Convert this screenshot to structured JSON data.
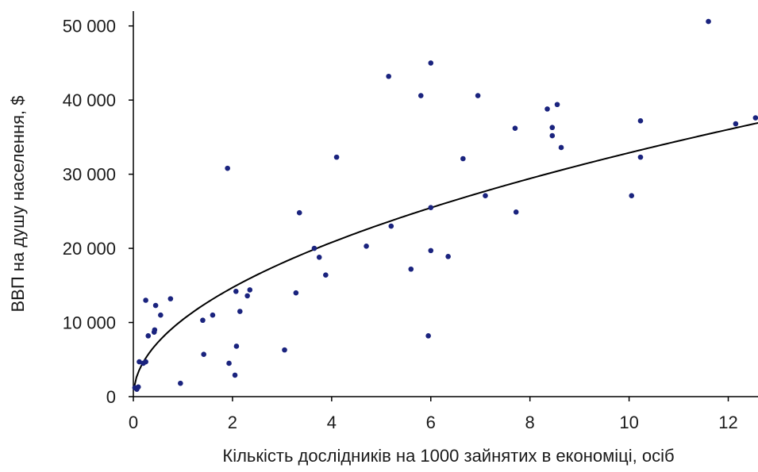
{
  "chart_data": {
    "type": "scatter",
    "xlabel": "Кількість дослідників на 1000 зайнятих в економіці, осіб",
    "ylabel": "ВВП на душу населення, $",
    "xlim": [
      0,
      12.6
    ],
    "ylim": [
      0,
      52000
    ],
    "x_ticks": [
      0,
      2,
      4,
      6,
      8,
      10,
      12
    ],
    "x_tick_labels": [
      "0",
      "2",
      "4",
      "6",
      "8",
      "10",
      "12"
    ],
    "y_ticks": [
      0,
      10000,
      20000,
      30000,
      40000,
      50000
    ],
    "y_tick_labels": [
      "0",
      "10 000",
      "20 000",
      "30 000",
      "40 000",
      "50 000"
    ],
    "grid": false,
    "legend": "none",
    "point_color": "#1a237e",
    "trendline": {
      "type": "power",
      "a": 10400,
      "b": 0.5,
      "color": "#000000"
    },
    "points": [
      {
        "x": 0.03,
        "y": 1200
      },
      {
        "x": 0.07,
        "y": 1000
      },
      {
        "x": 0.1,
        "y": 1300
      },
      {
        "x": 0.12,
        "y": 4700
      },
      {
        "x": 0.2,
        "y": 4500
      },
      {
        "x": 0.25,
        "y": 4700
      },
      {
        "x": 0.25,
        "y": 13000
      },
      {
        "x": 0.3,
        "y": 8200
      },
      {
        "x": 0.42,
        "y": 8700
      },
      {
        "x": 0.43,
        "y": 9000
      },
      {
        "x": 0.45,
        "y": 12300
      },
      {
        "x": 0.55,
        "y": 11000
      },
      {
        "x": 0.75,
        "y": 13200
      },
      {
        "x": 0.95,
        "y": 1800
      },
      {
        "x": 1.4,
        "y": 10300
      },
      {
        "x": 1.42,
        "y": 5700
      },
      {
        "x": 1.6,
        "y": 11000
      },
      {
        "x": 1.9,
        "y": 30800
      },
      {
        "x": 1.93,
        "y": 4500
      },
      {
        "x": 2.05,
        "y": 2900
      },
      {
        "x": 2.07,
        "y": 14200
      },
      {
        "x": 2.08,
        "y": 6800
      },
      {
        "x": 2.15,
        "y": 11500
      },
      {
        "x": 2.3,
        "y": 13600
      },
      {
        "x": 2.35,
        "y": 14400
      },
      {
        "x": 3.05,
        "y": 6300
      },
      {
        "x": 3.28,
        "y": 14000
      },
      {
        "x": 3.35,
        "y": 24800
      },
      {
        "x": 3.65,
        "y": 20000
      },
      {
        "x": 3.75,
        "y": 18800
      },
      {
        "x": 3.88,
        "y": 16400
      },
      {
        "x": 4.1,
        "y": 32300
      },
      {
        "x": 4.7,
        "y": 20300
      },
      {
        "x": 5.15,
        "y": 43200
      },
      {
        "x": 5.2,
        "y": 23000
      },
      {
        "x": 5.6,
        "y": 17200
      },
      {
        "x": 5.8,
        "y": 40600
      },
      {
        "x": 5.95,
        "y": 8200
      },
      {
        "x": 6.0,
        "y": 45000
      },
      {
        "x": 6.0,
        "y": 25500
      },
      {
        "x": 6.0,
        "y": 19700
      },
      {
        "x": 6.35,
        "y": 18900
      },
      {
        "x": 6.65,
        "y": 32100
      },
      {
        "x": 6.95,
        "y": 40600
      },
      {
        "x": 7.1,
        "y": 27100
      },
      {
        "x": 7.7,
        "y": 36200
      },
      {
        "x": 7.72,
        "y": 24900
      },
      {
        "x": 8.35,
        "y": 38800
      },
      {
        "x": 8.45,
        "y": 36300
      },
      {
        "x": 8.45,
        "y": 35200
      },
      {
        "x": 8.55,
        "y": 39400
      },
      {
        "x": 8.63,
        "y": 33600
      },
      {
        "x": 10.05,
        "y": 27100
      },
      {
        "x": 10.23,
        "y": 37200
      },
      {
        "x": 10.23,
        "y": 32300
      },
      {
        "x": 11.6,
        "y": 50600
      },
      {
        "x": 12.15,
        "y": 36800
      },
      {
        "x": 12.55,
        "y": 37600
      }
    ]
  }
}
